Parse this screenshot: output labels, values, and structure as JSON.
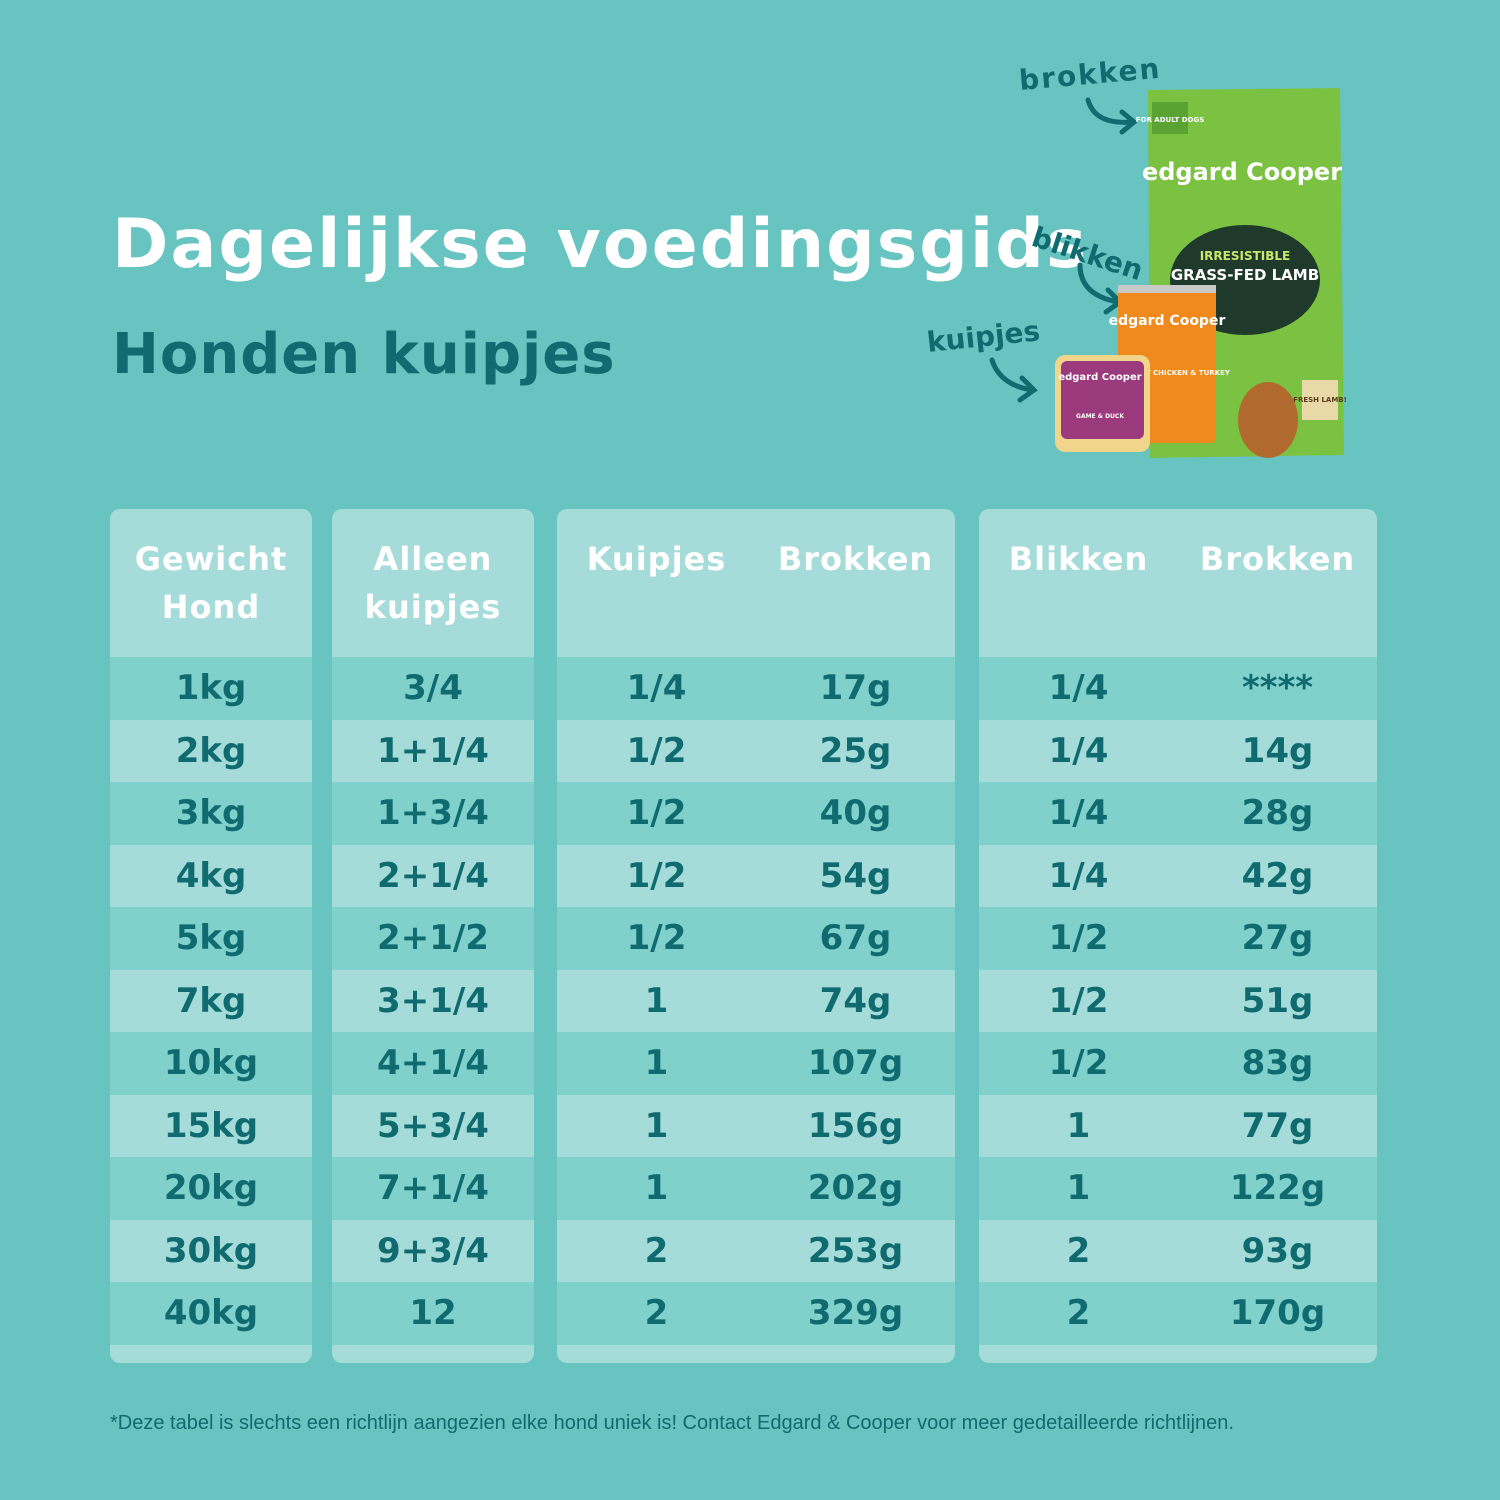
{
  "header": {
    "title": "Dagelijkse voedingsgids",
    "subtitle": "Honden kuipjes"
  },
  "product_labels": {
    "brokken": "brokken",
    "blikken": "blikken",
    "kuipjes": "kuipjes"
  },
  "packaging": {
    "bag_badge": "FOR ADULT DOGS",
    "brand": "edgard Cooper",
    "bag_line1": "IRRESISTIBLE",
    "bag_line2": "GRASS-FED LAMB",
    "bag_sticker": "FRESH LAMB!",
    "can_text": "SUCCULENT CHICKEN & TURKEY",
    "tray_text": "GAME & DUCK"
  },
  "table": {
    "panels": [
      {
        "headers": [
          "Gewicht\nHond"
        ],
        "rows": [
          [
            "1kg"
          ],
          [
            "2kg"
          ],
          [
            "3kg"
          ],
          [
            "4kg"
          ],
          [
            "5kg"
          ],
          [
            "7kg"
          ],
          [
            "10kg"
          ],
          [
            "15kg"
          ],
          [
            "20kg"
          ],
          [
            "30kg"
          ],
          [
            "40kg"
          ]
        ]
      },
      {
        "headers": [
          "Alleen\nkuipjes"
        ],
        "rows": [
          [
            "3/4"
          ],
          [
            "1+1/4"
          ],
          [
            "1+3/4"
          ],
          [
            "2+1/4"
          ],
          [
            "2+1/2"
          ],
          [
            "3+1/4"
          ],
          [
            "4+1/4"
          ],
          [
            "5+3/4"
          ],
          [
            "7+1/4"
          ],
          [
            "9+3/4"
          ],
          [
            "12"
          ]
        ]
      },
      {
        "headers": [
          "Kuipjes",
          "Brokken"
        ],
        "rows": [
          [
            "1/4",
            "17g"
          ],
          [
            "1/2",
            "25g"
          ],
          [
            "1/2",
            "40g"
          ],
          [
            "1/2",
            "54g"
          ],
          [
            "1/2",
            "67g"
          ],
          [
            "1",
            "74g"
          ],
          [
            "1",
            "107g"
          ],
          [
            "1",
            "156g"
          ],
          [
            "1",
            "202g"
          ],
          [
            "2",
            "253g"
          ],
          [
            "2",
            "329g"
          ]
        ]
      },
      {
        "headers": [
          "Blikken",
          "Brokken"
        ],
        "rows": [
          [
            "1/4",
            "****"
          ],
          [
            "1/4",
            "14g"
          ],
          [
            "1/4",
            "28g"
          ],
          [
            "1/4",
            "42g"
          ],
          [
            "1/2",
            "27g"
          ],
          [
            "1/2",
            "51g"
          ],
          [
            "1/2",
            "83g"
          ],
          [
            "1",
            "77g"
          ],
          [
            "1",
            "122g"
          ],
          [
            "2",
            "93g"
          ],
          [
            "2",
            "170g"
          ]
        ]
      }
    ]
  },
  "footnote": "*Deze tabel is slechts een richtlijn aangezien elke hond uniek is! Contact Edgard & Cooper voor meer gedetailleerde richtlijnen."
}
